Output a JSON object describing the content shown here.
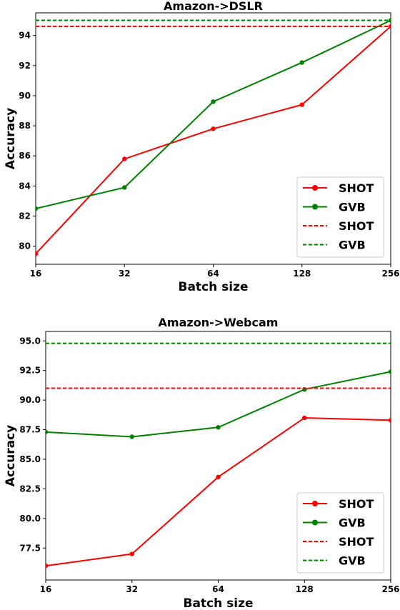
{
  "chart_data": [
    {
      "type": "line",
      "title": "Amazon->DSLR",
      "xlabel": "Batch size",
      "ylabel": "Accuracy",
      "x_scale": "log2",
      "x": [
        16,
        32,
        64,
        128,
        256
      ],
      "xticks": [
        "16",
        "32",
        "64",
        "128",
        "256"
      ],
      "xlim": [
        16,
        256
      ],
      "ylim": [
        78.8,
        95.5
      ],
      "yticks": [
        80,
        82,
        84,
        86,
        88,
        90,
        92,
        94
      ],
      "ytick_labels": [
        "80",
        "82",
        "84",
        "86",
        "88",
        "90",
        "92",
        "94"
      ],
      "grid": false,
      "legend_position": "lower-right",
      "series": [
        {
          "name": "SHOT",
          "style": "solid-marker",
          "color": "#ff0000",
          "values": [
            79.5,
            85.8,
            87.8,
            89.4,
            94.6
          ]
        },
        {
          "name": "GVB",
          "style": "solid-marker",
          "color": "#008000",
          "values": [
            82.5,
            83.9,
            89.6,
            92.2,
            95.0
          ]
        },
        {
          "name": "SHOT",
          "style": "dashed",
          "color": "#ff0000",
          "value": 94.6
        },
        {
          "name": "GVB",
          "style": "dashed",
          "color": "#008000",
          "value": 95.0
        }
      ]
    },
    {
      "type": "line",
      "title": "Amazon->Webcam",
      "xlabel": "Batch size",
      "ylabel": "Accuracy",
      "x_scale": "log2",
      "x": [
        16,
        32,
        64,
        128,
        256
      ],
      "xticks": [
        "16",
        "32",
        "64",
        "128",
        "256"
      ],
      "xlim": [
        16,
        256
      ],
      "ylim": [
        74.8,
        95.8
      ],
      "yticks": [
        77.5,
        80.0,
        82.5,
        85.0,
        87.5,
        90.0,
        92.5,
        95.0
      ],
      "ytick_labels": [
        "77.5",
        "80.0",
        "82.5",
        "85.0",
        "87.5",
        "90.0",
        "92.5",
        "95.0"
      ],
      "grid": false,
      "legend_position": "lower-right",
      "series": [
        {
          "name": "SHOT",
          "style": "solid-marker",
          "color": "#ff0000",
          "values": [
            76.0,
            77.0,
            83.5,
            88.5,
            88.3
          ]
        },
        {
          "name": "GVB",
          "style": "solid-marker",
          "color": "#008000",
          "values": [
            87.3,
            86.9,
            87.7,
            90.9,
            92.4
          ]
        },
        {
          "name": "SHOT",
          "style": "dashed",
          "color": "#ff0000",
          "value": 91.0
        },
        {
          "name": "GVB",
          "style": "dashed",
          "color": "#008000",
          "value": 94.8
        }
      ]
    }
  ]
}
